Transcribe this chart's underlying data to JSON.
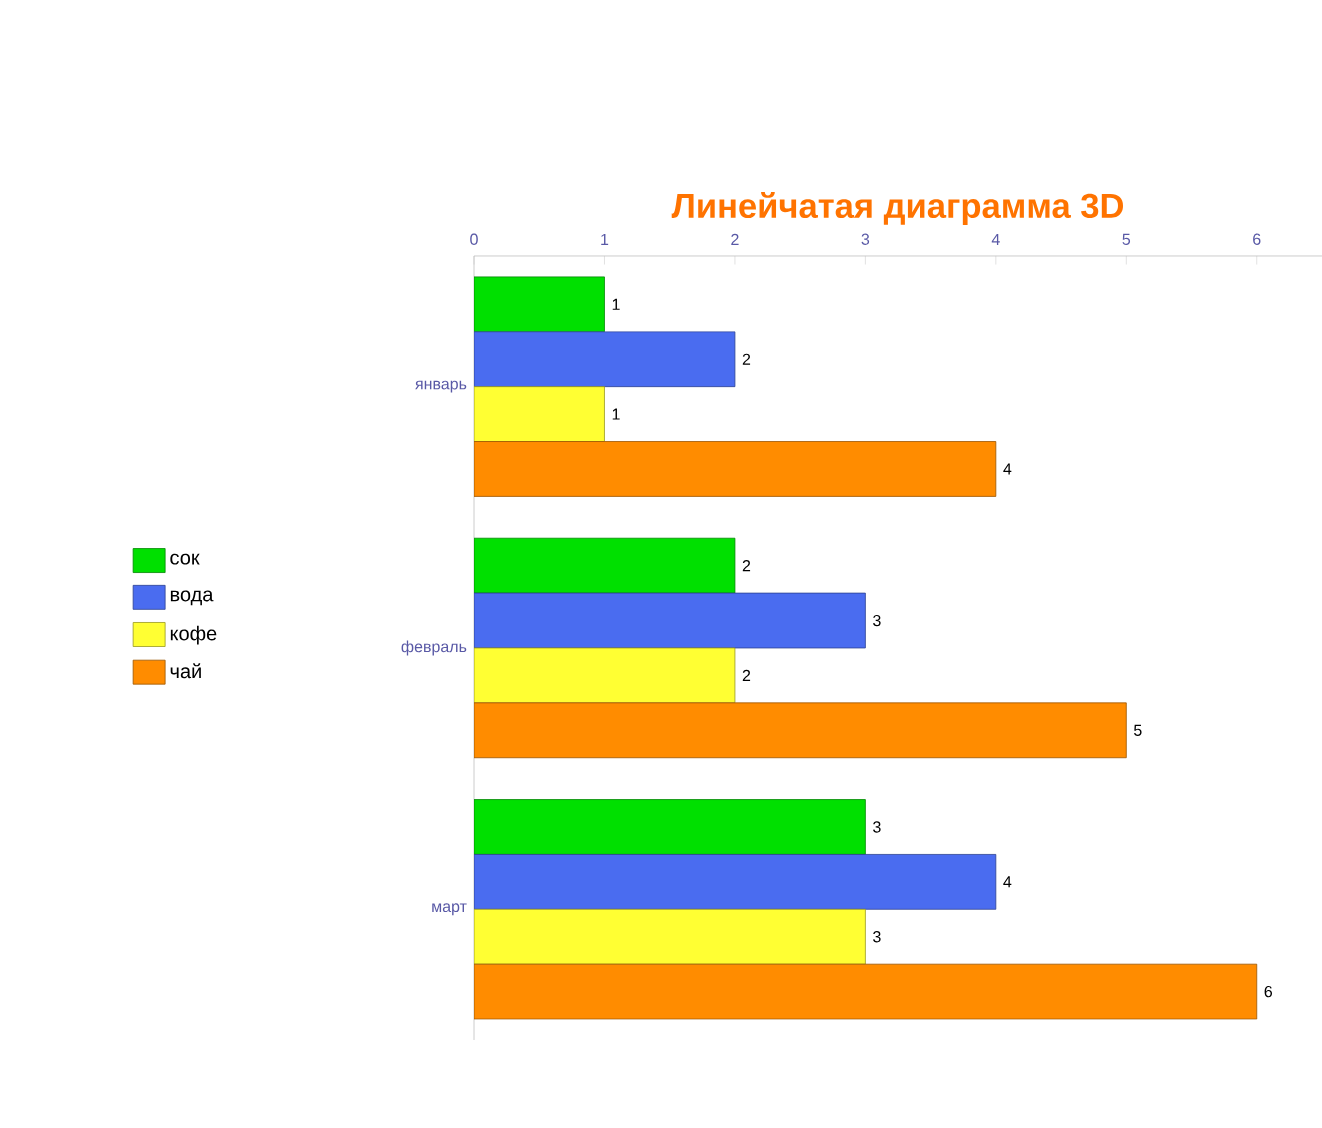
{
  "chart_data": {
    "type": "bar",
    "orientation": "horizontal",
    "title": "Линейчатая диаграмма 3D",
    "categories": [
      "январь",
      "февраль",
      "март"
    ],
    "series": [
      {
        "name": "сок",
        "color": "#00e000",
        "values": [
          1,
          2,
          3
        ]
      },
      {
        "name": "вода",
        "color": "#4a6cf0",
        "values": [
          2,
          3,
          4
        ]
      },
      {
        "name": "кофе",
        "color": "#ffff33",
        "values": [
          1,
          2,
          3
        ]
      },
      {
        "name": "чай",
        "color": "#ff8c00",
        "values": [
          4,
          5,
          6
        ]
      }
    ],
    "xlim": [
      0,
      6.5
    ],
    "xticks": [
      0,
      1,
      2,
      3,
      4,
      5,
      6
    ],
    "data_labels": true,
    "legend": "left"
  }
}
